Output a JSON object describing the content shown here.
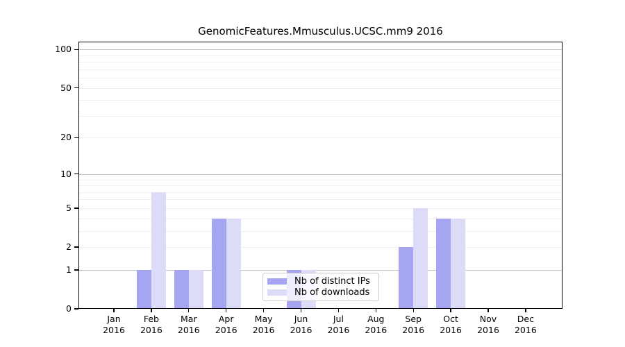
{
  "figure": {
    "background": "#ffffff"
  },
  "chart_data": {
    "type": "bar",
    "title": "GenomicFeatures.Mmusculus.UCSC.mm9 2016",
    "categories": [
      "Jan 2016",
      "Feb 2016",
      "Mar 2016",
      "Apr 2016",
      "May 2016",
      "Jun 2016",
      "Jul 2016",
      "Aug 2016",
      "Sep 2016",
      "Oct 2016",
      "Nov 2016",
      "Dec 2016"
    ],
    "series": [
      {
        "name": "Nb of distinct IPs",
        "color": "#a5a5f2",
        "values": [
          0,
          1,
          1,
          4,
          0,
          1,
          0,
          0,
          2,
          4,
          0,
          0
        ]
      },
      {
        "name": "Nb of downloads",
        "color": "#dcdcf9",
        "values": [
          0,
          7,
          1,
          4,
          0,
          1,
          0,
          0,
          5,
          4,
          0,
          0
        ]
      }
    ],
    "xlabel": "",
    "ylabel": "",
    "y_scale": "log1p",
    "ylim": [
      0,
      115
    ],
    "y_ticks": [
      0,
      1,
      2,
      5,
      10,
      20,
      50,
      100
    ],
    "y_major_gridlines": [
      1,
      10,
      100
    ],
    "y_minor_gridlines": [
      2,
      3,
      4,
      5,
      6,
      7,
      8,
      9,
      20,
      30,
      40,
      50,
      60,
      70,
      80,
      90
    ],
    "grid": "horizontal",
    "legend_position": "lower center",
    "colors": {
      "grid_major": "#c4c4c4",
      "grid_minor": "#efefef",
      "axis": "#000000",
      "text": "#000000",
      "legend_border": "#cccccc"
    }
  }
}
